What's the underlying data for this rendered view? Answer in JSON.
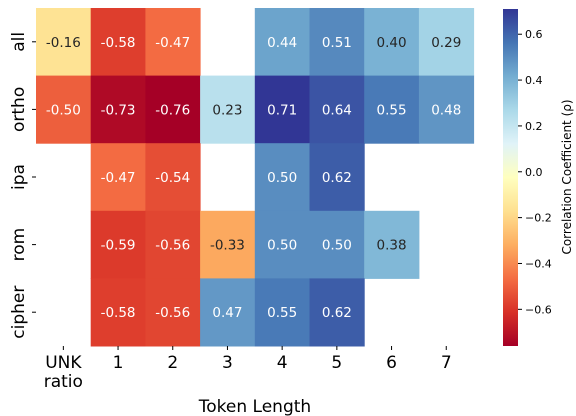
{
  "chart_data": {
    "type": "heatmap",
    "xlabel": "Token Length",
    "x_ticks": [
      [
        "UNK",
        "ratio"
      ],
      [
        "1"
      ],
      [
        "2"
      ],
      [
        "3"
      ],
      [
        "4"
      ],
      [
        "5"
      ],
      [
        "6"
      ],
      [
        "7"
      ]
    ],
    "y_ticks": [
      "all",
      "ortho",
      "ipa",
      "rom",
      "cipher"
    ],
    "values": [
      [
        -0.16,
        -0.58,
        -0.47,
        null,
        0.44,
        0.51,
        0.4,
        0.29
      ],
      [
        -0.5,
        -0.73,
        -0.76,
        0.23,
        0.71,
        0.64,
        0.55,
        0.48
      ],
      [
        null,
        -0.47,
        -0.54,
        null,
        0.5,
        0.62,
        null,
        null
      ],
      [
        null,
        -0.59,
        -0.56,
        -0.33,
        0.5,
        0.5,
        0.38,
        null
      ],
      [
        null,
        -0.58,
        -0.56,
        0.47,
        0.55,
        0.62,
        null,
        null
      ]
    ],
    "cell_labels": [
      [
        "-0.16",
        "-0.58",
        "-0.47",
        "",
        "0.44",
        "0.51",
        "0.40",
        "0.29"
      ],
      [
        "-0.50",
        "-0.73",
        "-0.76",
        "0.23",
        "0.71",
        "0.64",
        "0.55",
        "0.48"
      ],
      [
        "",
        "-0.47",
        "-0.54",
        "",
        "0.50",
        "0.62",
        "",
        ""
      ],
      [
        "",
        "-0.59",
        "-0.56",
        "-0.33",
        "0.50",
        "0.50",
        "0.38",
        ""
      ],
      [
        "",
        "-0.58",
        "-0.56",
        "0.47",
        "0.55",
        "0.62",
        "",
        ""
      ]
    ],
    "colormap": "RdYlBu",
    "vmin": -0.76,
    "vmax": 0.71,
    "colorbar": {
      "label": "Correlation Coefficient (ρ)",
      "ticks": [
        -0.6,
        -0.4,
        -0.2,
        0.0,
        0.2,
        0.4,
        0.6
      ],
      "tick_labels": [
        "−0.6",
        "−0.4",
        "−0.2",
        "0.0",
        "0.2",
        "0.4",
        "0.6"
      ]
    }
  }
}
